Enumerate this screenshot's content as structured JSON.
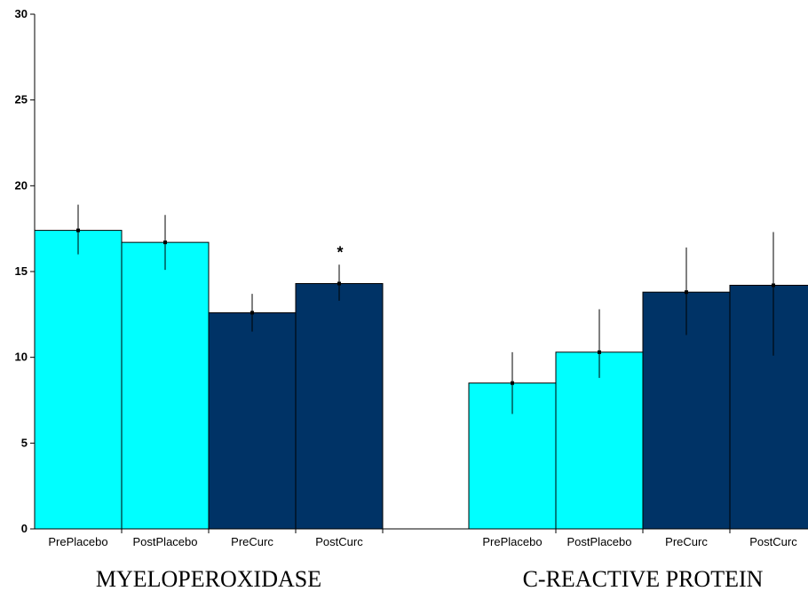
{
  "chart_data": {
    "type": "bar",
    "title": "",
    "xlabel": "",
    "ylabel": "",
    "ylim": [
      0,
      30
    ],
    "yticks": [
      0,
      5,
      10,
      15,
      20,
      25,
      30
    ],
    "grid": false,
    "legend": "none",
    "groups": [
      {
        "label": "MYELOPEROXIDASE",
        "bars": [
          {
            "category": "PrePlacebo",
            "value": 17.4,
            "err_low": 16.0,
            "err_high": 18.9,
            "color": "#00ffff"
          },
          {
            "category": "PostPlacebo",
            "value": 16.7,
            "err_low": 15.1,
            "err_high": 18.3,
            "color": "#00ffff"
          },
          {
            "category": "PreCurc",
            "value": 12.6,
            "err_low": 11.5,
            "err_high": 13.7,
            "color": "#003366"
          },
          {
            "category": "PostCurc",
            "value": 14.3,
            "err_low": 13.3,
            "err_high": 15.4,
            "color": "#003366",
            "annotation": "*"
          }
        ]
      },
      {
        "label": "C-REACTIVE PROTEIN",
        "bars": [
          {
            "category": "PrePlacebo",
            "value": 8.5,
            "err_low": 6.7,
            "err_high": 10.3,
            "color": "#00ffff"
          },
          {
            "category": "PostPlacebo",
            "value": 10.3,
            "err_low": 8.8,
            "err_high": 12.8,
            "color": "#00ffff"
          },
          {
            "category": "PreCurc",
            "value": 13.8,
            "err_low": 11.3,
            "err_high": 16.4,
            "color": "#003366"
          },
          {
            "category": "PostCurc",
            "value": 14.2,
            "err_low": 10.1,
            "err_high": 17.3,
            "color": "#003366"
          }
        ]
      }
    ]
  }
}
